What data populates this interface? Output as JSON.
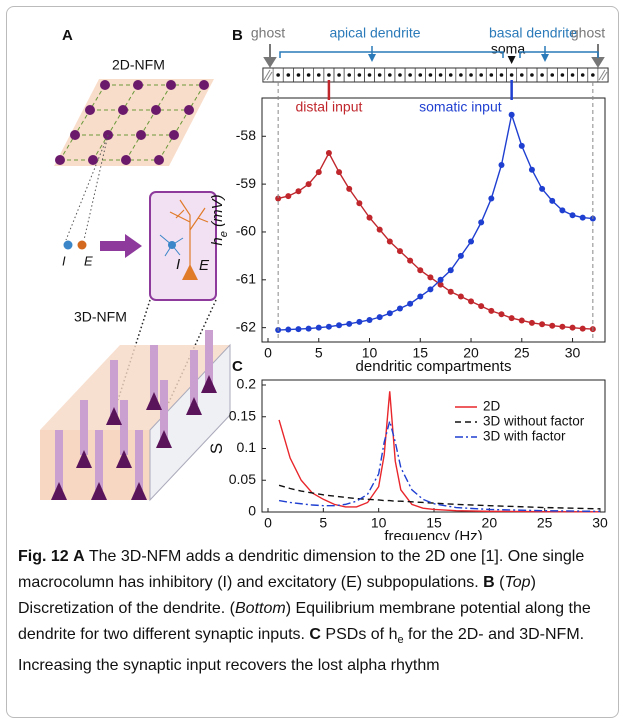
{
  "panel_a": {
    "label": "A",
    "top_title": "2D-NFM",
    "pop_i": "I",
    "pop_e": "E",
    "box_i": "I",
    "box_e": "E",
    "bottom_title": "3D-NFM"
  },
  "panel_b": {
    "label": "B",
    "ghost_left": "ghost",
    "apical": "apical dendrite",
    "basal": "basal dendrite",
    "soma": "soma",
    "ghost_right": "ghost"
  },
  "panel_c": {
    "label": "C"
  },
  "chart_data": [
    {
      "type": "line",
      "ylabel": [
        "h",
        "e",
        " (mV)"
      ],
      "xlabel": "dendritic compartments",
      "annotations": [
        {
          "text": "distal input",
          "color": "#c0272d"
        },
        {
          "text": "somatic input",
          "color": "#1f3fd1"
        }
      ],
      "x": [
        1,
        2,
        3,
        4,
        5,
        6,
        7,
        8,
        9,
        10,
        11,
        12,
        13,
        14,
        15,
        16,
        17,
        18,
        19,
        20,
        21,
        22,
        23,
        24,
        25,
        26,
        27,
        28,
        29,
        30,
        31,
        32
      ],
      "series": [
        {
          "color": "#c0272d",
          "dash": "solid",
          "marker": "circle",
          "values": [
            -59.3,
            -59.25,
            -59.15,
            -59.0,
            -58.75,
            -58.35,
            -58.75,
            -59.1,
            -59.4,
            -59.7,
            -59.95,
            -60.2,
            -60.4,
            -60.6,
            -60.8,
            -60.95,
            -61.1,
            -61.25,
            -61.35,
            -61.45,
            -61.55,
            -61.65,
            -61.72,
            -61.8,
            -61.85,
            -61.9,
            -61.93,
            -61.96,
            -61.98,
            -62.0,
            -62.02,
            -62.03
          ]
        },
        {
          "color": "#1f3fd1",
          "dash": "solid",
          "marker": "circle",
          "values": [
            -62.05,
            -62.04,
            -62.03,
            -62.02,
            -62.0,
            -61.98,
            -61.95,
            -61.92,
            -61.88,
            -61.84,
            -61.78,
            -61.7,
            -61.6,
            -61.5,
            -61.35,
            -61.2,
            -61.0,
            -60.8,
            -60.5,
            -60.2,
            -59.8,
            -59.3,
            -58.6,
            -57.55,
            -58.2,
            -58.7,
            -59.1,
            -59.35,
            -59.55,
            -59.65,
            -59.7,
            -59.72
          ]
        }
      ],
      "xlim": [
        0,
        33
      ],
      "ylim": [
        -62.3,
        -57.2
      ],
      "xticks": [
        0,
        5,
        10,
        15,
        20,
        25,
        30
      ],
      "yticks": [
        -62,
        -61,
        -60,
        -59,
        -58
      ],
      "grid": false
    },
    {
      "type": "line",
      "ylabel": [
        "S"
      ],
      "xlabel": "frequency (Hz)",
      "x": [
        1,
        2,
        3,
        4,
        5,
        6,
        7,
        8,
        9,
        10,
        10.5,
        11,
        11.5,
        12,
        13,
        14,
        15,
        17,
        20,
        25,
        30
      ],
      "series": [
        {
          "name": "2D",
          "color": "#e8262b",
          "dash": "solid",
          "values": [
            0.145,
            0.085,
            0.05,
            0.03,
            0.02,
            0.012,
            0.008,
            0.008,
            0.015,
            0.04,
            0.09,
            0.19,
            0.08,
            0.035,
            0.012,
            0.006,
            0.004,
            0.002,
            0.001,
            0.0005,
            0.0003
          ]
        },
        {
          "name": "3D without factor",
          "color": "#111111",
          "dash": "dashed",
          "values": [
            0.042,
            0.037,
            0.033,
            0.03,
            0.027,
            0.025,
            0.023,
            0.021,
            0.02,
            0.019,
            0.018,
            0.018,
            0.017,
            0.017,
            0.016,
            0.015,
            0.014,
            0.012,
            0.01,
            0.007,
            0.005
          ]
        },
        {
          "name": "3D with factor",
          "color": "#1f3fd1",
          "dash": "dashdot",
          "values": [
            0.018,
            0.015,
            0.013,
            0.011,
            0.01,
            0.01,
            0.012,
            0.017,
            0.028,
            0.06,
            0.11,
            0.143,
            0.11,
            0.07,
            0.035,
            0.02,
            0.013,
            0.007,
            0.004,
            0.002,
            0.001
          ]
        }
      ],
      "xlim": [
        0,
        30
      ],
      "ylim": [
        0,
        0.2
      ],
      "xticks": [
        0,
        5,
        10,
        15,
        20,
        25,
        30
      ],
      "yticks": [
        0,
        0.05,
        0.1,
        0.15,
        0.2
      ],
      "legend": "upper right",
      "grid": false
    }
  ],
  "caption": [
    {
      "text": "Fig. 12",
      "style": "bold"
    },
    {
      "text": " ",
      "style": "normal"
    },
    {
      "text": "A",
      "style": "bold"
    },
    {
      "text": " The 3D-NFM adds a dendritic dimension to the 2D one [1]. One single macrocolumn has inhibitory (I) and excitatory (E) subpopulations. ",
      "style": "normal"
    },
    {
      "text": "B",
      "style": "bold"
    },
    {
      "text": " (",
      "style": "normal"
    },
    {
      "text": "Top",
      "style": "italic"
    },
    {
      "text": ") Discretization of the dendrite. (",
      "style": "normal"
    },
    {
      "text": "Bottom",
      "style": "italic"
    },
    {
      "text": ") Equilibrium membrane potential along the dendrite for two different synaptic inputs. ",
      "style": "normal"
    },
    {
      "text": "C",
      "style": "bold"
    },
    {
      "text": " PSDs of h",
      "style": "normal"
    },
    {
      "text": "e",
      "style": "sub"
    },
    {
      "text": " for the 2D- and 3D-NFM. Increasing the synaptic input recovers the lost alpha rhythm",
      "style": "normal"
    }
  ]
}
